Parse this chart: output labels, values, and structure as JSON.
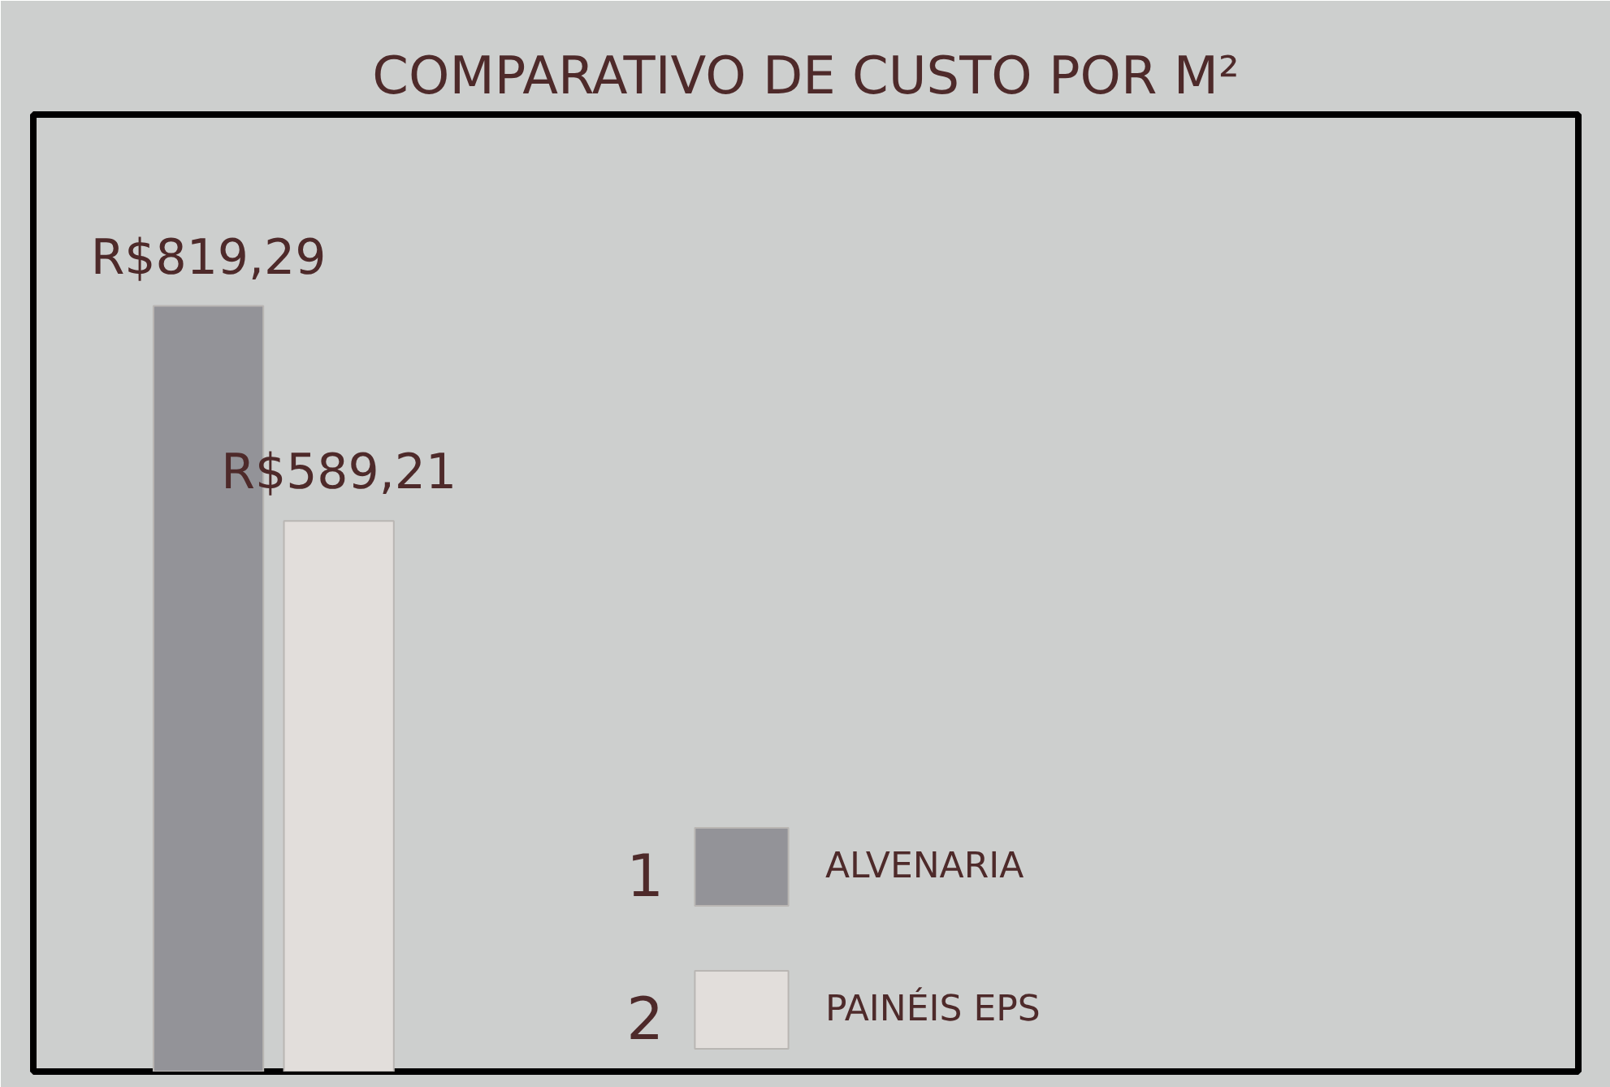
{
  "chart_data": {
    "type": "bar",
    "title": "COMPARATIVO DE CUSTO POR M²",
    "categories": [
      null
    ],
    "series": [
      {
        "name": "ALVENARIA",
        "color": "#939398",
        "values": [
          819.29
        ],
        "value_labels": [
          "R$819,29"
        ]
      },
      {
        "name": "PAINÉIS EPS",
        "color": "#e2dedb",
        "values": [
          589.21
        ],
        "value_labels": [
          "R$589,21"
        ]
      }
    ],
    "legend": "bottom",
    "annotations": [
      "1",
      "2"
    ]
  }
}
